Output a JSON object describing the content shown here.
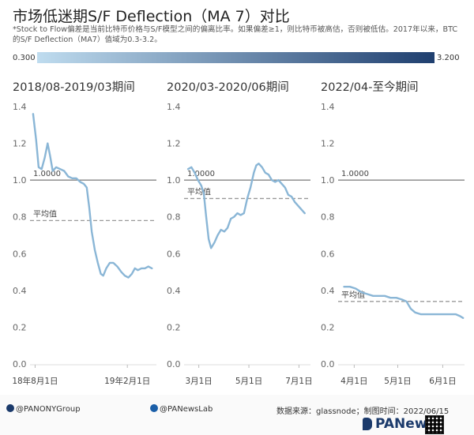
{
  "header": {
    "title": "市场低迷期S/F Deflection（MA 7）对比",
    "description": "*Stock to Flow偏差是当前比特币价格与S/F模型之间的偏离比率。如果偏差≥1，则比特币被高估，否则被低估。2017年以来，BTC的S/F Deflection（MA7）值域为0.3-3.2。"
  },
  "legend": {
    "min_label": "0.300",
    "max_label": "3.200",
    "color_low": "#bfdcef",
    "color_high": "#1f3f6f"
  },
  "colors": {
    "line": "#8ab6d6",
    "reference": "#777777",
    "average": "#999999"
  },
  "chart_data": [
    {
      "type": "line",
      "title": "2018/08-2019/03期间",
      "ylim": [
        0,
        1.4
      ],
      "yticks": [
        "0.0",
        "0.2",
        "0.4",
        "0.6",
        "0.8",
        "1.0",
        "1.2",
        "1.4"
      ],
      "x_range": [
        "2018-07-25",
        "2019-03-31"
      ],
      "xticks": [
        {
          "date": "2018-08-01",
          "label": "18年8月1日"
        },
        {
          "date": "2019-02-01",
          "label": "19年2月1日"
        }
      ],
      "reference": {
        "value": 1.0,
        "label": "1.0000"
      },
      "average": {
        "value": 0.78,
        "label": "平均值"
      },
      "series": [
        {
          "points": [
            [
              "2018-07-28",
              1.36
            ],
            [
              "2018-08-03",
              1.22
            ],
            [
              "2018-08-08",
              1.07
            ],
            [
              "2018-08-14",
              1.06
            ],
            [
              "2018-08-20",
              1.12
            ],
            [
              "2018-08-26",
              1.2
            ],
            [
              "2018-08-31",
              1.13
            ],
            [
              "2018-09-05",
              1.05
            ],
            [
              "2018-09-12",
              1.07
            ],
            [
              "2018-09-20",
              1.06
            ],
            [
              "2018-09-28",
              1.05
            ],
            [
              "2018-10-06",
              1.02
            ],
            [
              "2018-10-14",
              1.01
            ],
            [
              "2018-10-22",
              1.01
            ],
            [
              "2018-10-30",
              0.99
            ],
            [
              "2018-11-06",
              0.98
            ],
            [
              "2018-11-12",
              0.96
            ],
            [
              "2018-11-17",
              0.85
            ],
            [
              "2018-11-22",
              0.72
            ],
            [
              "2018-11-28",
              0.62
            ],
            [
              "2018-12-04",
              0.55
            ],
            [
              "2018-12-10",
              0.49
            ],
            [
              "2018-12-15",
              0.48
            ],
            [
              "2018-12-21",
              0.52
            ],
            [
              "2018-12-28",
              0.55
            ],
            [
              "2019-01-04",
              0.55
            ],
            [
              "2019-01-12",
              0.53
            ],
            [
              "2019-01-20",
              0.5
            ],
            [
              "2019-01-27",
              0.48
            ],
            [
              "2019-02-03",
              0.47
            ],
            [
              "2019-02-10",
              0.49
            ],
            [
              "2019-02-16",
              0.52
            ],
            [
              "2019-02-22",
              0.51
            ],
            [
              "2019-03-01",
              0.52
            ],
            [
              "2019-03-08",
              0.52
            ],
            [
              "2019-03-15",
              0.53
            ],
            [
              "2019-03-22",
              0.52
            ]
          ]
        }
      ]
    },
    {
      "type": "line",
      "title": "2020/03-2020/06期间",
      "ylim": [
        0,
        1.4
      ],
      "yticks": [
        "0.0",
        "0.2",
        "0.4",
        "0.6",
        "0.8",
        "1.0",
        "1.2",
        "1.4"
      ],
      "x_range": [
        "2020-02-14",
        "2020-07-15"
      ],
      "xticks": [
        {
          "date": "2020-03-01",
          "label": "3月1日"
        },
        {
          "date": "2020-05-01",
          "label": "5月1日"
        },
        {
          "date": "2020-07-01",
          "label": "7月1日"
        }
      ],
      "reference": {
        "value": 1.0,
        "label": "1.0000"
      },
      "average": {
        "value": 0.9,
        "label": "平均值"
      },
      "series": [
        {
          "points": [
            [
              "2020-02-17",
              1.06
            ],
            [
              "2020-02-21",
              1.07
            ],
            [
              "2020-02-25",
              1.04
            ],
            [
              "2020-02-29",
              1.0
            ],
            [
              "2020-03-04",
              0.97
            ],
            [
              "2020-03-07",
              0.93
            ],
            [
              "2020-03-10",
              0.8
            ],
            [
              "2020-03-13",
              0.68
            ],
            [
              "2020-03-16",
              0.63
            ],
            [
              "2020-03-20",
              0.66
            ],
            [
              "2020-03-24",
              0.7
            ],
            [
              "2020-03-28",
              0.73
            ],
            [
              "2020-04-01",
              0.72
            ],
            [
              "2020-04-05",
              0.74
            ],
            [
              "2020-04-09",
              0.79
            ],
            [
              "2020-04-13",
              0.8
            ],
            [
              "2020-04-17",
              0.82
            ],
            [
              "2020-04-21",
              0.81
            ],
            [
              "2020-04-25",
              0.82
            ],
            [
              "2020-04-29",
              0.9
            ],
            [
              "2020-05-03",
              0.96
            ],
            [
              "2020-05-07",
              1.04
            ],
            [
              "2020-05-10",
              1.08
            ],
            [
              "2020-05-13",
              1.09
            ],
            [
              "2020-05-17",
              1.07
            ],
            [
              "2020-05-21",
              1.04
            ],
            [
              "2020-05-25",
              1.03
            ],
            [
              "2020-05-29",
              1.0
            ],
            [
              "2020-06-02",
              0.99
            ],
            [
              "2020-06-06",
              1.0
            ],
            [
              "2020-06-10",
              0.98
            ],
            [
              "2020-06-14",
              0.96
            ],
            [
              "2020-06-18",
              0.92
            ],
            [
              "2020-06-22",
              0.91
            ],
            [
              "2020-06-26",
              0.88
            ],
            [
              "2020-06-30",
              0.86
            ],
            [
              "2020-07-04",
              0.84
            ],
            [
              "2020-07-08",
              0.82
            ]
          ]
        }
      ]
    },
    {
      "type": "line",
      "title": "2022/04-至今期间",
      "ylim": [
        0,
        1.4
      ],
      "yticks": [
        "0.0",
        "0.2",
        "0.4",
        "0.6",
        "0.8",
        "1.0",
        "1.2",
        "1.4"
      ],
      "x_range": [
        "2022-03-22",
        "2022-06-16"
      ],
      "xticks": [
        {
          "date": "2022-04-01",
          "label": "4月1日"
        },
        {
          "date": "2022-05-01",
          "label": "5月1日"
        },
        {
          "date": "2022-06-01",
          "label": "6月1日"
        }
      ],
      "reference": {
        "value": 1.0,
        "label": "1.0000"
      },
      "average": {
        "value": 0.34,
        "label": "平均值"
      },
      "series": [
        {
          "points": [
            [
              "2022-03-25",
              0.42
            ],
            [
              "2022-03-29",
              0.42
            ],
            [
              "2022-04-02",
              0.41
            ],
            [
              "2022-04-06",
              0.39
            ],
            [
              "2022-04-10",
              0.38
            ],
            [
              "2022-04-14",
              0.37
            ],
            [
              "2022-04-18",
              0.37
            ],
            [
              "2022-04-22",
              0.37
            ],
            [
              "2022-04-26",
              0.36
            ],
            [
              "2022-04-30",
              0.36
            ],
            [
              "2022-05-04",
              0.35
            ],
            [
              "2022-05-07",
              0.34
            ],
            [
              "2022-05-10",
              0.3
            ],
            [
              "2022-05-13",
              0.28
            ],
            [
              "2022-05-17",
              0.27
            ],
            [
              "2022-05-21",
              0.27
            ],
            [
              "2022-05-25",
              0.27
            ],
            [
              "2022-05-29",
              0.27
            ],
            [
              "2022-06-02",
              0.27
            ],
            [
              "2022-06-06",
              0.27
            ],
            [
              "2022-06-10",
              0.27
            ],
            [
              "2022-06-13",
              0.26
            ],
            [
              "2022-06-15",
              0.25
            ]
          ]
        }
      ]
    }
  ],
  "footer": {
    "twitter": "@PANONYGroup",
    "facebook": "@PANewsLab",
    "source": "数据来源：glassnode；制图时间：2022/06/15",
    "logo": "PANews"
  }
}
